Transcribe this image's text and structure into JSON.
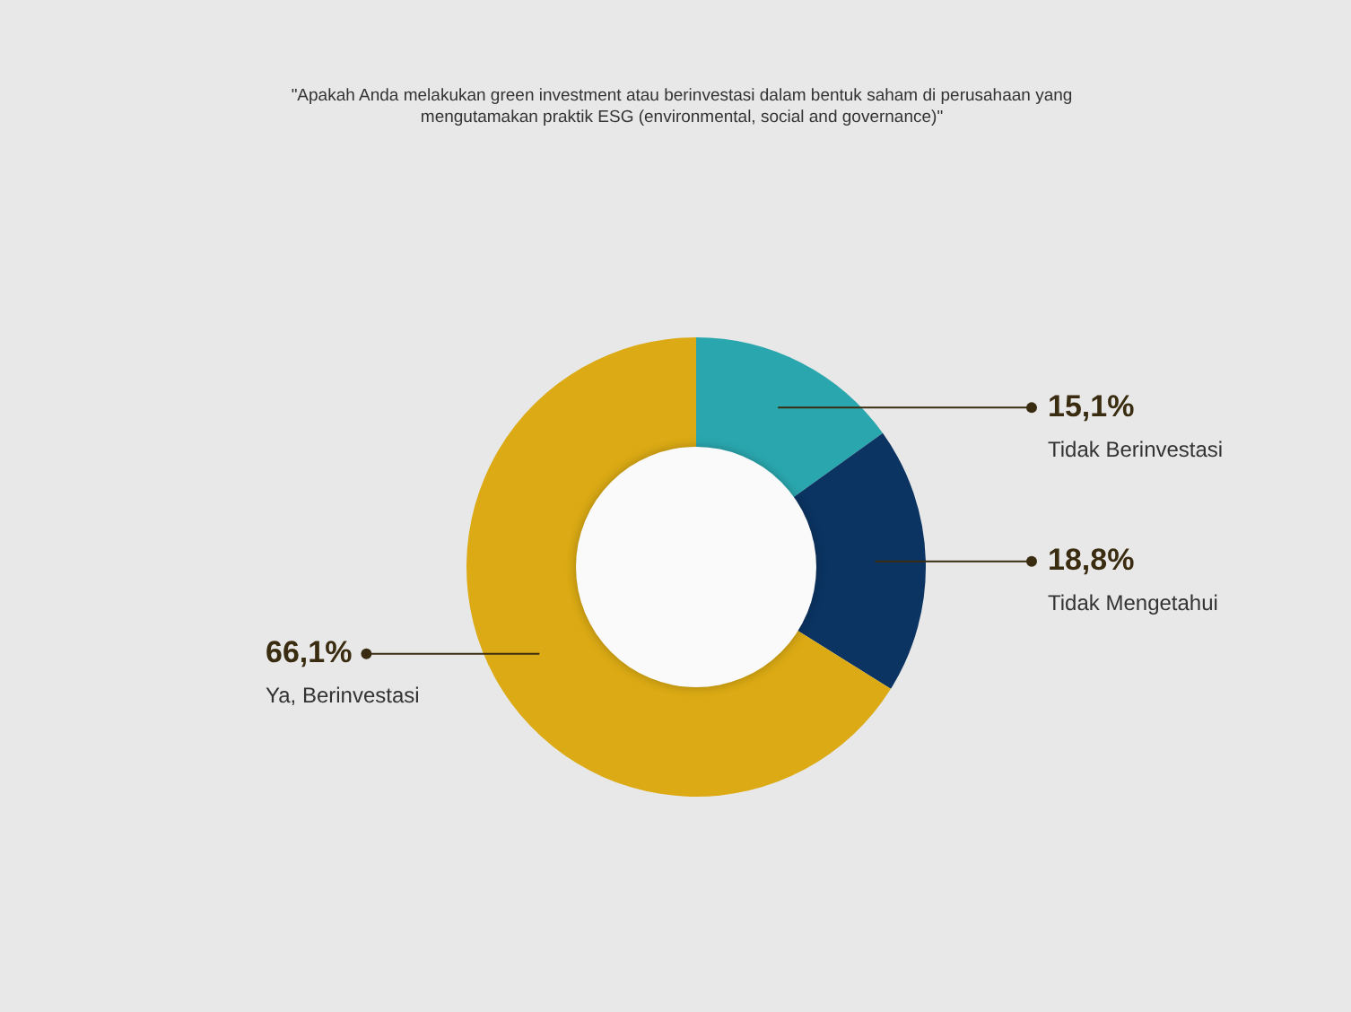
{
  "chart_data": {
    "type": "donut",
    "title": "\"Apakah Anda melakukan green investment atau berinvestasi dalam bentuk saham di perusahaan yang mengutamakan praktik ESG (environmental, social and governance)\"",
    "categories": [
      "Tidak Berinvestasi",
      "Tidak Mengetahui",
      "Ya, Berinvestasi"
    ],
    "values": [
      15.1,
      18.8,
      66.1
    ],
    "value_labels": [
      "15,1%",
      "18,8%",
      "66,1%"
    ],
    "colors": [
      "#2aa7ae",
      "#0b3462",
      "#dbaa14"
    ],
    "legend": false
  }
}
